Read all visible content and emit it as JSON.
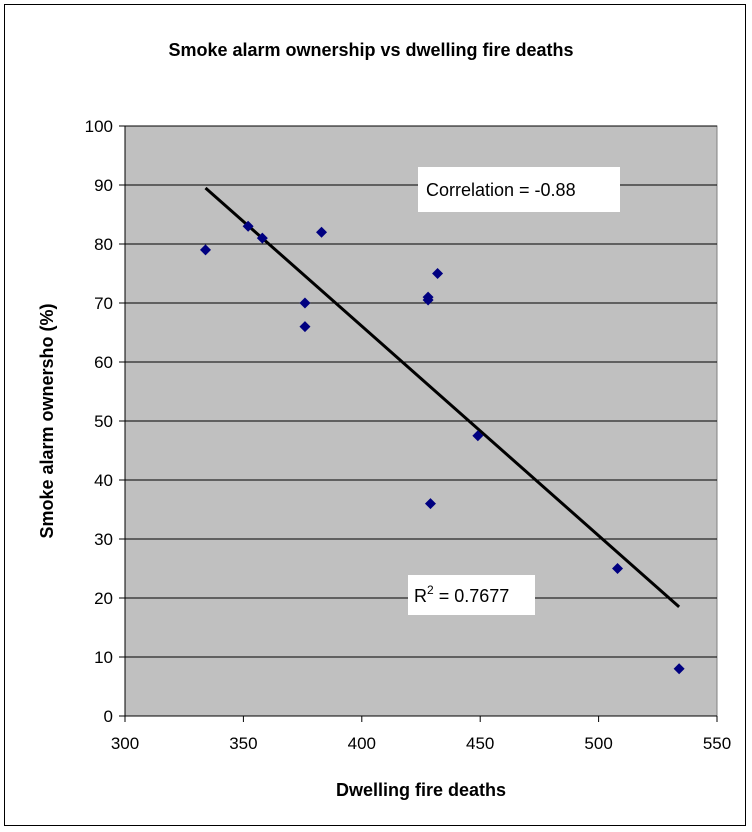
{
  "chart_data": {
    "type": "scatter",
    "title": "Smoke alarm ownership vs dwelling fire deaths",
    "xlabel": "Dwelling fire deaths",
    "ylabel": "Smoke alarm ownersho (%)",
    "xlim": [
      300,
      550
    ],
    "ylim": [
      0,
      100
    ],
    "xticks": [
      300,
      350,
      400,
      450,
      500,
      550
    ],
    "yticks": [
      0,
      10,
      20,
      30,
      40,
      50,
      60,
      70,
      80,
      90,
      100
    ],
    "grid": "horizontal",
    "marker": "diamond",
    "colors": {
      "plot_bg": "#c0c0c0",
      "marker": "#000080",
      "trendline": "#000000",
      "grid": "#000000"
    },
    "points": [
      {
        "x": 334,
        "y": 79
      },
      {
        "x": 352,
        "y": 83
      },
      {
        "x": 358,
        "y": 81
      },
      {
        "x": 376,
        "y": 70
      },
      {
        "x": 376,
        "y": 66
      },
      {
        "x": 383,
        "y": 82
      },
      {
        "x": 428,
        "y": 71
      },
      {
        "x": 428,
        "y": 70.5
      },
      {
        "x": 429,
        "y": 36
      },
      {
        "x": 432,
        "y": 75
      },
      {
        "x": 449,
        "y": 47.5
      },
      {
        "x": 508,
        "y": 25
      },
      {
        "x": 534,
        "y": 8
      }
    ],
    "trendline": {
      "x": [
        334,
        534
      ],
      "y": [
        89.5,
        18.5
      ]
    },
    "annotations": {
      "correlation": "Correlation = -0.88",
      "r2_prefix": "R",
      "r2_sup": "2",
      "r2_value": " = 0.7677"
    }
  }
}
